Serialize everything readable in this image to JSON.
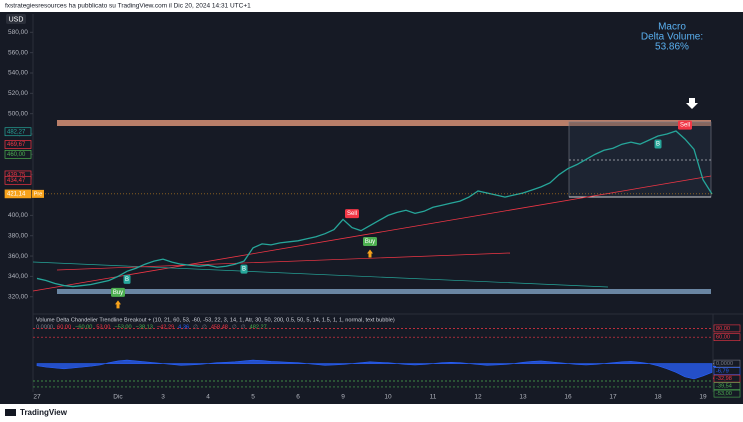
{
  "header": "fxstrategiesresources ha pubblicato su TradingView.com il Dic 20, 2024 14:31 UTC+1",
  "footer": "TradingView",
  "chart_data": [
    {
      "type": "line",
      "currency": "USD",
      "annotation": [
        "Macro",
        "Delta Volume:",
        "53.86%"
      ],
      "categories": [
        "27",
        null,
        null,
        null,
        null,
        null,
        null,
        null,
        null,
        "Dic",
        null,
        null,
        null,
        null,
        "3",
        null,
        null,
        null,
        null,
        "4",
        null,
        null,
        null,
        null,
        "5",
        null,
        null,
        null,
        null,
        "6",
        null,
        null,
        null,
        null,
        "9",
        null,
        null,
        null,
        null,
        "10",
        null,
        null,
        null,
        null,
        "11",
        null,
        null,
        null,
        null,
        "12",
        null,
        null,
        null,
        null,
        "13",
        null,
        null,
        null,
        null,
        "16",
        null,
        null,
        null,
        null,
        "17",
        null,
        null,
        null,
        null,
        "18",
        null,
        null,
        null,
        null,
        "19",
        null
      ],
      "values": [
        338,
        336,
        333,
        331,
        330,
        331,
        332,
        334,
        336,
        340,
        345,
        348,
        352,
        355,
        357,
        354,
        352,
        351,
        350,
        351,
        349,
        350,
        352,
        355,
        368,
        372,
        371,
        373,
        374,
        375,
        377,
        379,
        382,
        386,
        396,
        388,
        385,
        390,
        395,
        400,
        403,
        405,
        402,
        404,
        408,
        410,
        412,
        414,
        418,
        424,
        422,
        420,
        418,
        420,
        422,
        425,
        428,
        432,
        440,
        446,
        450,
        455,
        460,
        464,
        466,
        470,
        472,
        470,
        474,
        478,
        480,
        483,
        475,
        465,
        435,
        421
      ],
      "color": "#26a69a",
      "ylim": [
        305,
        598
      ],
      "yticks": [
        {
          "value": 580,
          "label": "580,00"
        },
        {
          "value": 560,
          "label": "560,00"
        },
        {
          "value": 540,
          "label": "540,00"
        },
        {
          "value": 520,
          "label": "520,00"
        },
        {
          "value": 500,
          "label": "500,00"
        },
        {
          "value": 480,
          "label": "480,00"
        },
        {
          "value": 460,
          "label": "460,00"
        },
        {
          "value": 440,
          "label": "440,00"
        },
        {
          "value": 420,
          "label": "420,00"
        },
        {
          "value": 400,
          "label": "400,00"
        },
        {
          "value": 380,
          "label": "380,00"
        },
        {
          "value": 360,
          "label": "360,00"
        },
        {
          "value": 340,
          "label": "340,00"
        },
        {
          "value": 320,
          "label": "320,00"
        }
      ],
      "price_labels": [
        {
          "value": 482.27,
          "label": "482,27",
          "color": "#26a69a"
        },
        {
          "value": 469.67,
          "label": "469,67",
          "color": "#f23645"
        },
        {
          "value": 460,
          "label": "460,00",
          "color": "#4caf50"
        },
        {
          "value": 439.75,
          "label": "439,75",
          "color": "#f23645"
        },
        {
          "value": 434.47,
          "label": "434,47",
          "color": "#f23645"
        },
        {
          "value": 421.14,
          "label": "421,14",
          "color": "#f7a21b",
          "tag": "Pre"
        }
      ],
      "signals": [
        {
          "label": "Buy",
          "at": 9,
          "color": "#4caf50"
        },
        {
          "label": "B",
          "at": 10,
          "color": "#26a69a"
        },
        {
          "label": "B",
          "at": 23,
          "color": "#26a69a"
        },
        {
          "label": "Sell",
          "at": 35,
          "color": "#f23645"
        },
        {
          "label": "Buy",
          "at": 37,
          "color": "#4caf50"
        },
        {
          "label": "B",
          "at": 69,
          "color": "#26a69a"
        },
        {
          "label": "Sell",
          "at": 72,
          "color": "#f23645"
        }
      ]
    },
    {
      "type": "area",
      "title": "Volume Delta Chandelier Trendline Breakout + (10, 21, 60, 53, -60, -53, 22, 3, 14, 1, Atr, 30, 50, 200, 0.5, 50, 5, 14, 1.5, 1, 1, normal, text bubble)",
      "legend_values": [
        {
          "text": "0,0000",
          "color": "#787b86"
        },
        {
          "text": "60,00",
          "color": "#f23645"
        },
        {
          "text": "−60,00",
          "color": "#4caf50"
        },
        {
          "text": "53,00",
          "color": "#f23645"
        },
        {
          "text": "−53,00",
          "color": "#4caf50"
        },
        {
          "text": "−38,13",
          "color": "#4caf50"
        },
        {
          "text": "−42,29",
          "color": "#f23645"
        },
        {
          "text": "4,36",
          "color": "#2962ff"
        },
        {
          "text": "∅",
          "color": "#787b86"
        },
        {
          "text": "∅",
          "color": "#787b86"
        },
        {
          "text": "458,48",
          "color": "#f23645"
        },
        {
          "text": "∅",
          "color": "#787b86"
        },
        {
          "text": "∅",
          "color": "#787b86"
        },
        {
          "text": "482,27...",
          "color": "#4caf50"
        }
      ],
      "values": [
        -5,
        -8,
        -10,
        -12,
        -10,
        -8,
        -6,
        -3,
        2,
        6,
        8,
        6,
        4,
        2,
        0,
        -2,
        -4,
        -3,
        -2,
        0,
        2,
        3,
        4,
        6,
        8,
        7,
        5,
        4,
        3,
        2,
        0,
        -2,
        -4,
        -3,
        -2,
        0,
        2,
        4,
        3,
        2,
        0,
        -2,
        -3,
        -2,
        0,
        2,
        3,
        2,
        0,
        -2,
        -4,
        -3,
        -2,
        0,
        3,
        5,
        6,
        4,
        2,
        0,
        -2,
        -3,
        -2,
        0,
        2,
        4,
        5,
        3,
        0,
        -5,
        -12,
        -20,
        -30,
        -35,
        -28,
        -20
      ],
      "color": "#2962ff",
      "ylim": [
        -60,
        90
      ],
      "yticks": [
        {
          "value": 80,
          "label": "80,00",
          "color": "#f23645",
          "line": true
        },
        {
          "value": 60,
          "label": "60,00",
          "color": "#f23645",
          "line": true
        },
        {
          "value": 0,
          "label": "0,0000",
          "color": "#787b86"
        },
        {
          "value": -6.79,
          "label": "-6,79",
          "color": "#2962ff"
        },
        {
          "value": -32.98,
          "label": "-32,98",
          "color": "#f23645"
        },
        {
          "value": -39.54,
          "label": "-39,54",
          "color": "#4caf50",
          "line": true
        },
        {
          "value": -53,
          "label": "-53,00",
          "color": "#4caf50",
          "line": true
        }
      ]
    }
  ]
}
